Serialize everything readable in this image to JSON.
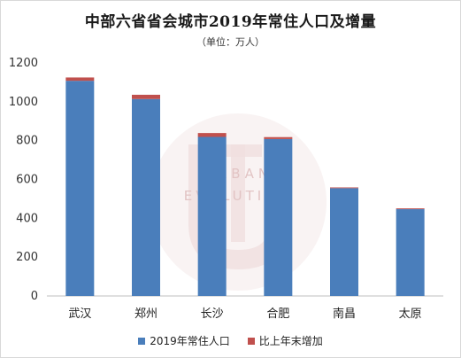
{
  "chart_data": {
    "type": "bar",
    "stacked": true,
    "title": "中部六省省会城市2019年常住人口及增量",
    "subtitle": "（单位：万人）",
    "categories": [
      "武汉",
      "郑州",
      "长沙",
      "合肥",
      "南昌",
      "太原"
    ],
    "series": [
      {
        "name": "2019年常住人口",
        "values": [
          1108,
          1014,
          819,
          808,
          555,
          447
        ],
        "color": "#4a7ebb"
      },
      {
        "name": "比上年末增加",
        "values": [
          17,
          22,
          20,
          10,
          4,
          4
        ],
        "color": "#c0504d"
      }
    ],
    "ylim": [
      0,
      1200
    ],
    "yticks": [
      0,
      200,
      400,
      600,
      800,
      1000,
      1200
    ],
    "grid": false,
    "legend": "bottom"
  },
  "watermark": {
    "text_line1": "URBAN",
    "text_line2": "EVOLUTION",
    "color": "#e6c8c8"
  }
}
